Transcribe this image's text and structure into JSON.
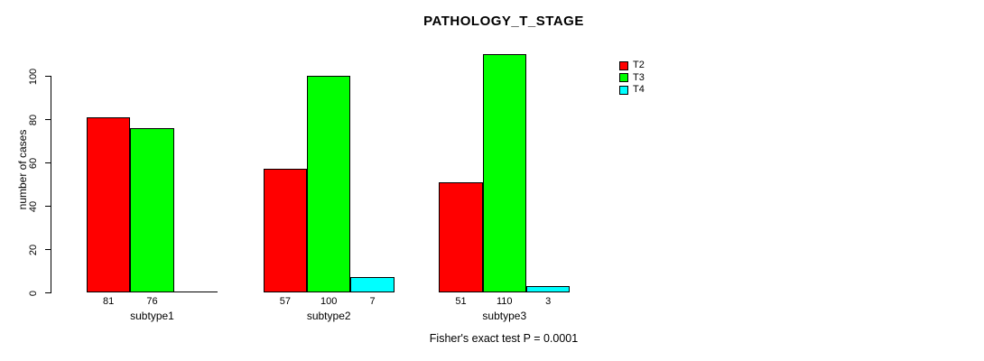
{
  "title": "PATHOLOGY_T_STAGE",
  "footer": "Fisher's exact test P = 0.0001",
  "legend": {
    "items": [
      {
        "label": "T2",
        "color": "#FF0000"
      },
      {
        "label": "T3",
        "color": "#00FF00"
      },
      {
        "label": "T4",
        "color": "#00FFFF"
      }
    ]
  },
  "chart_data": {
    "type": "bar",
    "title": "PATHOLOGY_T_STAGE",
    "xlabel": "",
    "ylabel": "number of cases",
    "categories": [
      "subtype1",
      "subtype2",
      "subtype3"
    ],
    "series": [
      {
        "name": "T2",
        "color": "#FF0000",
        "values": [
          81,
          57,
          51
        ]
      },
      {
        "name": "T3",
        "color": "#00FF00",
        "values": [
          76,
          100,
          110
        ]
      },
      {
        "name": "T4",
        "color": "#00FFFF",
        "values": [
          0,
          7,
          3
        ]
      }
    ],
    "yticks": [
      0,
      20,
      40,
      60,
      80,
      100
    ],
    "ylim": [
      0,
      100
    ],
    "bar_value_labels": [
      [
        "81",
        "76",
        ""
      ],
      [
        "57",
        "100",
        "7"
      ],
      [
        "51",
        "110",
        "3"
      ]
    ],
    "zero_values_drawn_as_flat_line": true,
    "legend_position": "topright",
    "grid": false,
    "annotation": "Fisher's exact test P = 0.0001"
  }
}
